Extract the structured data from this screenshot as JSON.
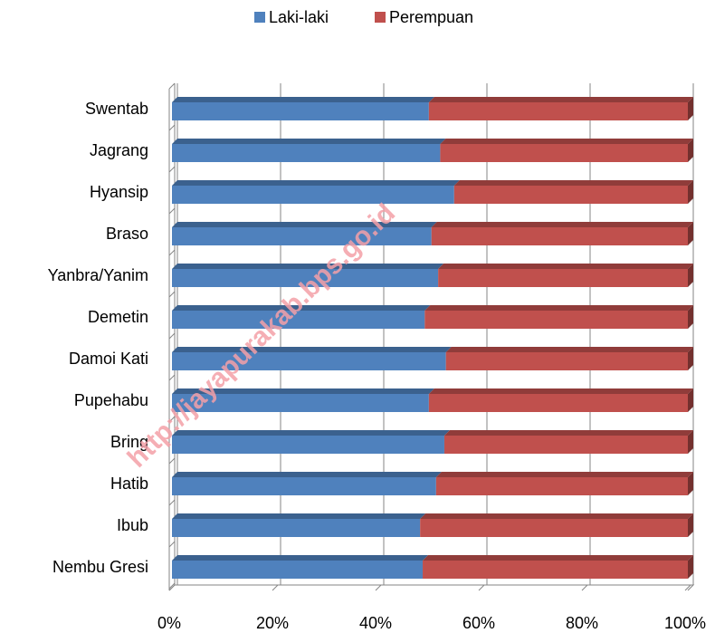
{
  "chart_data": {
    "type": "bar",
    "orientation": "horizontal",
    "stacked": true,
    "categories": [
      "Swentab",
      "Jagrang",
      "Hyansip",
      "Braso",
      "Yanbra/Yanim",
      "Demetin",
      "Damoi Kati",
      "Pupehabu",
      "Bring",
      "Hatib",
      "Ibub",
      "Nembu Gresi"
    ],
    "series": [
      {
        "name": "Laki-laki",
        "color": "#4f81bd",
        "values": [
          49.8,
          52,
          54.7,
          50.3,
          51.6,
          49,
          53.1,
          49.8,
          52.8,
          51.2,
          48.1,
          48.6
        ]
      },
      {
        "name": "Perempuan",
        "color": "#c0504d",
        "values": [
          50.2,
          48,
          45.3,
          49.7,
          48.4,
          51,
          46.9,
          50.2,
          47.2,
          48.8,
          51.9,
          51.4
        ]
      }
    ],
    "xlim": [
      0,
      100
    ],
    "xticks": [
      {
        "value": 0,
        "label": "0%"
      },
      {
        "value": 20,
        "label": "20%"
      },
      {
        "value": 40,
        "label": "40%"
      },
      {
        "value": 60,
        "label": "60%"
      },
      {
        "value": 80,
        "label": "80%"
      },
      {
        "value": 100,
        "label": "100%"
      }
    ],
    "grid": true,
    "legend": "top",
    "watermark": "http://jayapurakab.bps.go.id"
  }
}
